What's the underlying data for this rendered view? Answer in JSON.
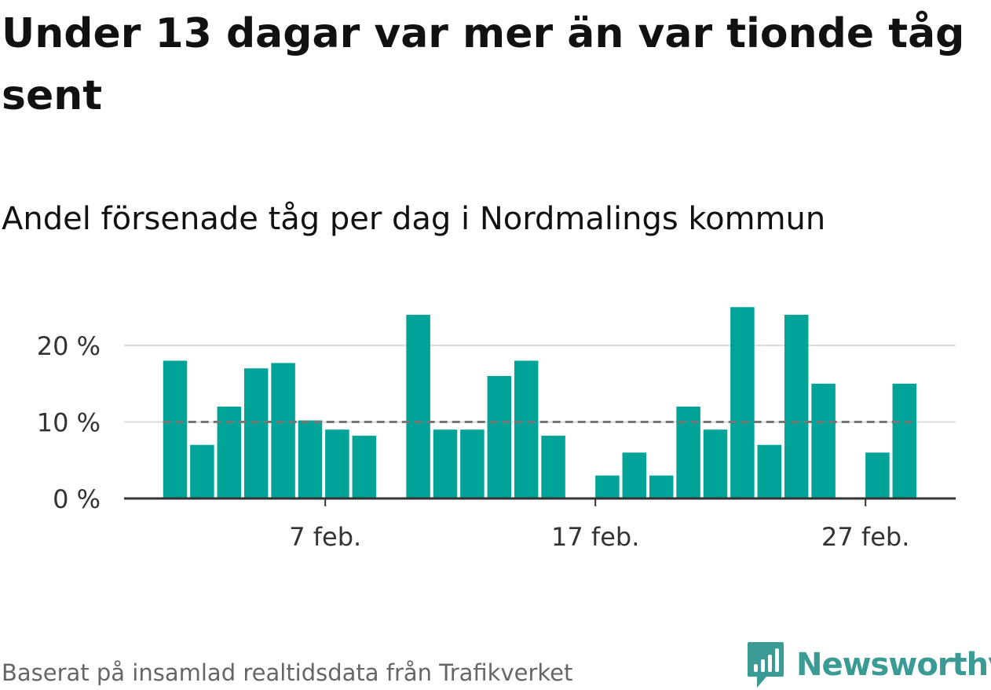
{
  "title": "Under 13 dagar var mer än var tionde tåg sent",
  "subtitle": "Andel försenade tåg per dag i Nordmalings kommun",
  "source": "Baserat på insamlad realtidsdata från Trafikverket",
  "brand": {
    "name": "Newsworthy",
    "color": "#3a9b95"
  },
  "colors": {
    "bar": "#00a398",
    "reference": "#777777",
    "grid": "#dddddd",
    "axis": "#333333"
  },
  "chart_data": {
    "type": "bar",
    "xlabel": "",
    "ylabel": "",
    "ylim": [
      0,
      26
    ],
    "y_ticks": [
      {
        "value": 0,
        "label": "0 %"
      },
      {
        "value": 10,
        "label": "10 %"
      },
      {
        "value": 20,
        "label": "20 %"
      }
    ],
    "x_ticks": [
      {
        "date": "2021-02-07",
        "label": "7 feb."
      },
      {
        "date": "2021-02-17",
        "label": "17 feb."
      },
      {
        "date": "2021-02-27",
        "label": "27 feb."
      }
    ],
    "reference_line": 10,
    "grid": true,
    "dates": [
      "2021-02-01",
      "2021-02-02",
      "2021-02-03",
      "2021-02-04",
      "2021-02-05",
      "2021-02-06",
      "2021-02-07",
      "2021-02-08",
      "2021-02-09",
      "2021-02-10",
      "2021-02-11",
      "2021-02-12",
      "2021-02-13",
      "2021-02-14",
      "2021-02-15",
      "2021-02-16",
      "2021-02-17",
      "2021-02-18",
      "2021-02-19",
      "2021-02-20",
      "2021-02-21",
      "2021-02-22",
      "2021-02-23",
      "2021-02-24",
      "2021-02-25",
      "2021-02-26",
      "2021-02-27",
      "2021-02-28"
    ],
    "values": [
      18,
      7,
      12,
      17,
      17.7,
      10.2,
      9,
      8.2,
      null,
      24,
      9,
      9,
      16,
      18,
      8.2,
      null,
      3,
      6,
      3,
      12,
      9,
      25,
      7,
      24,
      15,
      null,
      6,
      15
    ]
  }
}
